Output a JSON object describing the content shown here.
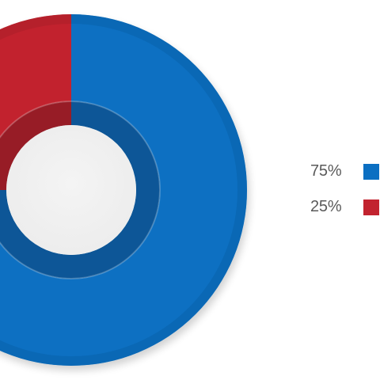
{
  "chart_data": {
    "type": "pie",
    "variant": "donut",
    "slices": [
      {
        "value": 75,
        "label": "75%",
        "color": "#0b6fc2"
      },
      {
        "value": 25,
        "label": "25%",
        "color": "#c2232f"
      }
    ],
    "legend_position": "right"
  },
  "background_color": "#ffffff"
}
